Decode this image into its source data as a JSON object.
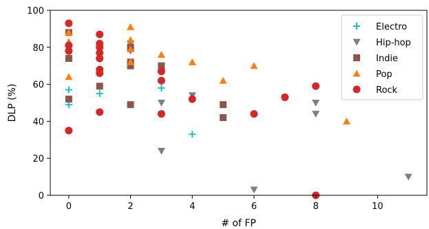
{
  "chart_data": {
    "type": "scatter",
    "xlabel": "# of FP",
    "ylabel": "DLP (%)",
    "xlim": [
      -0.6,
      11.6
    ],
    "ylim": [
      0,
      100
    ],
    "xticks": [
      0,
      2,
      4,
      6,
      8,
      10
    ],
    "yticks": [
      0,
      20,
      40,
      60,
      80,
      100
    ],
    "grid": false,
    "legend_position": "top-right",
    "series": [
      {
        "name": "Electro",
        "marker": "plus",
        "color": "#17becf",
        "points": [
          [
            0,
            57
          ],
          [
            0,
            49
          ],
          [
            1,
            55
          ],
          [
            3,
            58
          ],
          [
            4,
            33
          ]
        ]
      },
      {
        "name": "Hip-hop",
        "marker": "triangle-down",
        "color": "#7f7f7f",
        "points": [
          [
            0,
            88
          ],
          [
            0,
            79
          ],
          [
            2,
            82
          ],
          [
            2,
            78
          ],
          [
            3,
            50
          ],
          [
            3,
            24
          ],
          [
            4,
            54
          ],
          [
            6,
            3
          ],
          [
            8,
            50
          ],
          [
            8,
            44
          ],
          [
            11,
            10
          ]
        ]
      },
      {
        "name": "Indie",
        "marker": "square",
        "color": "#8c564b",
        "points": [
          [
            0,
            88
          ],
          [
            0,
            74
          ],
          [
            0,
            52
          ],
          [
            1,
            59
          ],
          [
            2,
            80
          ],
          [
            2,
            72
          ],
          [
            2,
            70
          ],
          [
            2,
            49
          ],
          [
            3,
            70
          ],
          [
            5,
            49
          ],
          [
            5,
            42
          ]
        ]
      },
      {
        "name": "Pop",
        "marker": "triangle-up",
        "color": "#ff7f0e",
        "points": [
          [
            0,
            88
          ],
          [
            0,
            83
          ],
          [
            0,
            64
          ],
          [
            2,
            91
          ],
          [
            2,
            84
          ],
          [
            2,
            79
          ],
          [
            2,
            72
          ],
          [
            3,
            76
          ],
          [
            4,
            72
          ],
          [
            5,
            62
          ],
          [
            6,
            70
          ],
          [
            9,
            40
          ]
        ]
      },
      {
        "name": "Rock",
        "marker": "circle",
        "color": "#d62728",
        "points": [
          [
            0,
            93
          ],
          [
            0,
            81
          ],
          [
            0,
            78
          ],
          [
            0,
            35
          ],
          [
            1,
            87
          ],
          [
            1,
            82
          ],
          [
            1,
            80
          ],
          [
            1,
            77
          ],
          [
            1,
            74
          ],
          [
            1,
            68
          ],
          [
            1,
            66
          ],
          [
            1,
            45
          ],
          [
            3,
            67
          ],
          [
            3,
            62
          ],
          [
            3,
            44
          ],
          [
            4,
            52
          ],
          [
            6,
            44
          ],
          [
            7,
            53
          ],
          [
            8,
            59
          ],
          [
            8,
            0
          ]
        ]
      }
    ]
  }
}
